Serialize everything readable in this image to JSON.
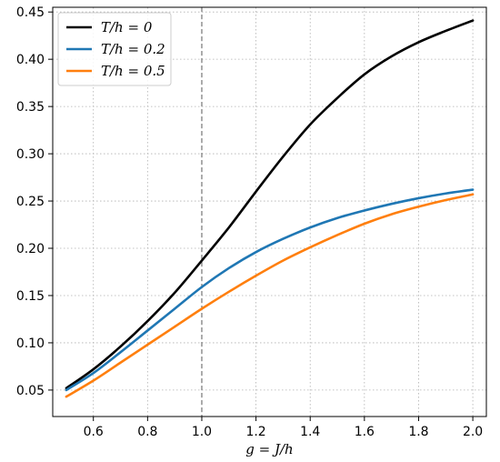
{
  "chart_data": {
    "type": "line",
    "title": "",
    "xlabel": "g = J/h",
    "ylabel": "",
    "xlim": [
      0.45,
      2.05
    ],
    "ylim": [
      0.022,
      0.455
    ],
    "xticks": [
      0.6,
      0.8,
      1.0,
      1.2,
      1.4,
      1.6,
      1.8,
      2.0
    ],
    "xtick_labels": [
      "0.6",
      "0.8",
      "1.0",
      "1.2",
      "1.4",
      "1.6",
      "1.8",
      "2.0"
    ],
    "yticks": [
      0.05,
      0.1,
      0.15,
      0.2,
      0.25,
      0.3,
      0.35,
      0.4,
      0.45
    ],
    "ytick_labels": [
      "0.05",
      "0.10",
      "0.15",
      "0.20",
      "0.25",
      "0.30",
      "0.35",
      "0.40",
      "0.45"
    ],
    "grid": true,
    "legend_position": "top-left",
    "vline": {
      "x": 1.0,
      "style": "dashed",
      "color": "#7f7f7f"
    },
    "series": [
      {
        "name": "T/h = 0",
        "color": "#000000",
        "x": [
          0.5,
          0.6,
          0.7,
          0.8,
          0.9,
          1.0,
          1.1,
          1.2,
          1.3,
          1.4,
          1.5,
          1.6,
          1.7,
          1.8,
          1.9,
          2.0
        ],
        "y": [
          0.052,
          0.072,
          0.096,
          0.123,
          0.153,
          0.187,
          0.222,
          0.26,
          0.297,
          0.331,
          0.359,
          0.384,
          0.403,
          0.418,
          0.43,
          0.441
        ]
      },
      {
        "name": "T/h = 0.2",
        "color": "#1f77b4",
        "x": [
          0.5,
          0.6,
          0.7,
          0.8,
          0.9,
          1.0,
          1.1,
          1.2,
          1.3,
          1.4,
          1.5,
          1.6,
          1.7,
          1.8,
          1.9,
          2.0
        ],
        "y": [
          0.05,
          0.068,
          0.09,
          0.113,
          0.136,
          0.159,
          0.179,
          0.196,
          0.21,
          0.222,
          0.232,
          0.24,
          0.247,
          0.253,
          0.258,
          0.262
        ]
      },
      {
        "name": "T/h = 0.5",
        "color": "#ff7f0e",
        "x": [
          0.5,
          0.6,
          0.7,
          0.8,
          0.9,
          1.0,
          1.1,
          1.2,
          1.3,
          1.4,
          1.5,
          1.6,
          1.7,
          1.8,
          1.9,
          2.0
        ],
        "y": [
          0.043,
          0.06,
          0.079,
          0.098,
          0.117,
          0.136,
          0.154,
          0.171,
          0.187,
          0.201,
          0.214,
          0.226,
          0.236,
          0.244,
          0.251,
          0.257
        ]
      }
    ]
  }
}
